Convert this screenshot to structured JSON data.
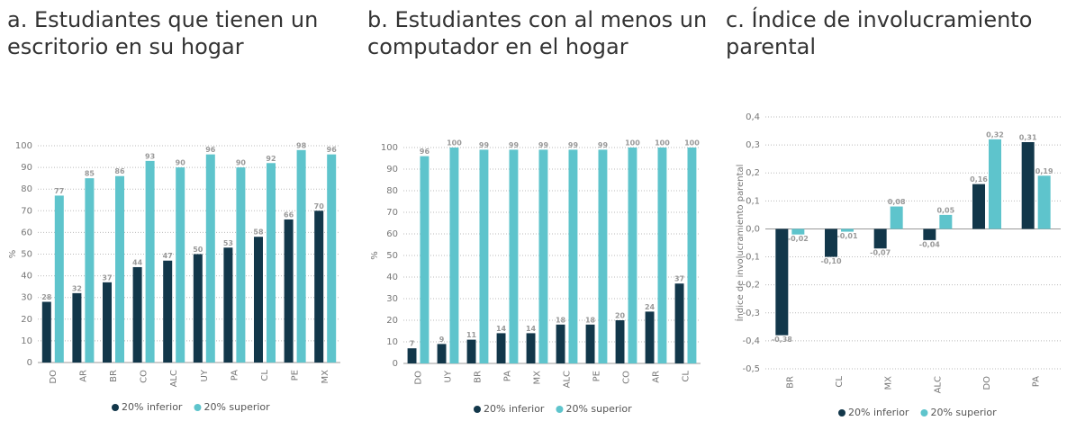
{
  "chart_data": [
    {
      "type": "bar",
      "title": [
        "a. Estudiantes que tienen un",
        "escritorio en su hogar"
      ],
      "y_label": "%",
      "categories": [
        "DO",
        "AR",
        "BR",
        "CO",
        "ALC",
        "UY",
        "PA",
        "CL",
        "PE",
        "MX"
      ],
      "series": [
        {
          "name": "20% inferior",
          "color": "#12374a",
          "values": [
            28,
            32,
            37,
            44,
            47,
            50,
            53,
            58,
            66,
            70
          ]
        },
        {
          "name": "20% superior",
          "color": "#5ec4cc",
          "values": [
            77,
            85,
            86,
            93,
            90,
            96,
            90,
            92,
            98,
            96
          ]
        }
      ],
      "ylim": [
        0,
        100
      ],
      "yticks": [
        0,
        10,
        20,
        30,
        40,
        50,
        60,
        70,
        80,
        90,
        100
      ],
      "grid": true,
      "legend": "bottom"
    },
    {
      "type": "bar",
      "title": [
        "b. Estudiantes con al menos un",
        "computador en el hogar"
      ],
      "y_label": "%",
      "categories": [
        "DO",
        "UY",
        "BR",
        "PA",
        "MX",
        "ALC",
        "PE",
        "CO",
        "AR",
        "CL"
      ],
      "series": [
        {
          "name": "20% inferior",
          "color": "#12374a",
          "values": [
            7,
            9,
            11,
            14,
            14,
            18,
            18,
            20,
            24,
            37
          ]
        },
        {
          "name": "20% superior",
          "color": "#5ec4cc",
          "values": [
            96,
            100,
            99,
            99,
            99,
            99,
            99,
            100,
            100,
            100
          ]
        }
      ],
      "ylim": [
        0,
        100
      ],
      "yticks": [
        0,
        10,
        20,
        30,
        40,
        50,
        60,
        70,
        80,
        90,
        100
      ],
      "grid": true,
      "legend": "bottom"
    },
    {
      "type": "bar",
      "title": [
        "c. Índice de involucramiento",
        "parental"
      ],
      "y_label": "Índice de involucramiento parental",
      "categories": [
        "BR",
        "CL",
        "MX",
        "ALC",
        "DO",
        "PA"
      ],
      "series": [
        {
          "name": "20% inferior",
          "color": "#12374a",
          "values": [
            -0.38,
            -0.1,
            -0.07,
            -0.04,
            0.16,
            0.31
          ],
          "value_labels": [
            "-0,38",
            "-0,10",
            "-0,07",
            "-0,04",
            "0,16",
            "0,31"
          ]
        },
        {
          "name": "20% superior",
          "color": "#5ec4cc",
          "values": [
            -0.02,
            -0.01,
            0.08,
            0.05,
            0.32,
            0.19
          ],
          "value_labels": [
            "-0,02",
            "-0,01",
            "0,08",
            "0,05",
            "0,32",
            "0,19"
          ]
        }
      ],
      "ylim": [
        -0.5,
        0.4
      ],
      "yticks": [
        {
          "value": -0.5,
          "label": "-0,5"
        },
        {
          "value": -0.4,
          "label": "-0,4"
        },
        {
          "value": -0.3,
          "label": "-0,3"
        },
        {
          "value": -0.2,
          "label": "-0,2"
        },
        {
          "value": -0.1,
          "label": "-0,1"
        },
        {
          "value": 0,
          "label": "0,0"
        },
        {
          "value": 0.1,
          "label": "0,1"
        },
        {
          "value": 0.2,
          "label": "0,2"
        },
        {
          "value": 0.3,
          "label": "0,3"
        },
        {
          "value": 0.4,
          "label": "0,4"
        }
      ],
      "grid": true,
      "legend": "bottom"
    }
  ]
}
